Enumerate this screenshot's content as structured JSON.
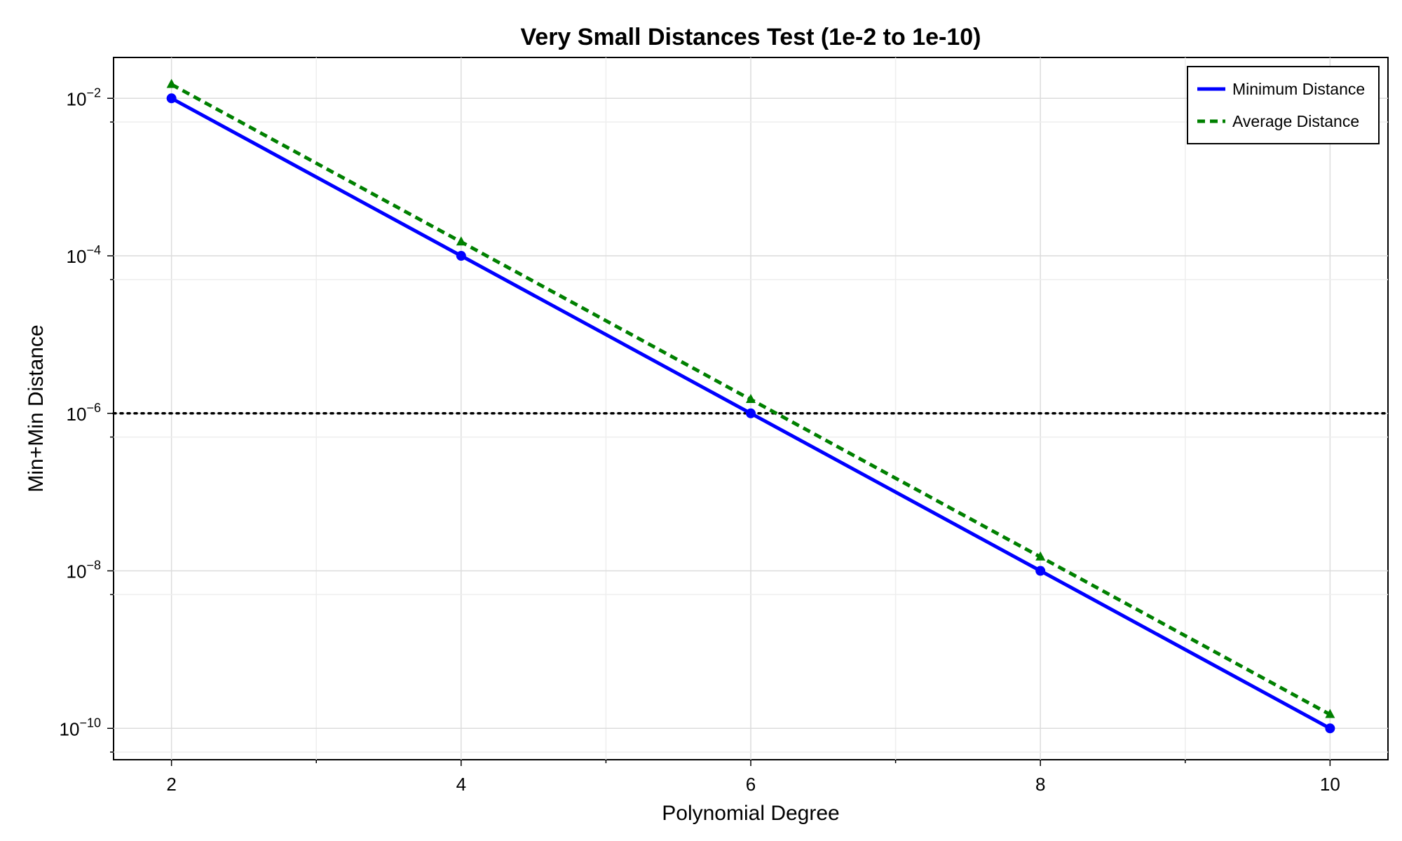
{
  "chart_data": {
    "type": "line",
    "title": "Very Small Distances Test (1e-2 to 1e-10)",
    "xlabel": "Polynomial Degree",
    "ylabel": "Min+Min Distance",
    "x": [
      2,
      4,
      6,
      8,
      10
    ],
    "xlim": [
      1.6,
      10.4
    ],
    "x_ticks": [
      2,
      4,
      6,
      8,
      10
    ],
    "y_scale": "log10",
    "ylim": [
      4e-11,
      0.033
    ],
    "y_ticks": [
      {
        "value": 0.01,
        "base": "10",
        "exp": "−2"
      },
      {
        "value": 0.0001,
        "base": "10",
        "exp": "−4"
      },
      {
        "value": 1e-06,
        "base": "10",
        "exp": "−6"
      },
      {
        "value": 1e-08,
        "base": "10",
        "exp": "−8"
      },
      {
        "value": 1e-10,
        "base": "10",
        "exp": "−10"
      }
    ],
    "grid": true,
    "legend_position": "top-right",
    "series": [
      {
        "name": "Minimum Distance",
        "values": [
          0.01,
          0.0001,
          1e-06,
          1e-08,
          1e-10
        ],
        "color": "#0000ff",
        "line_style": "solid",
        "marker": "circle"
      },
      {
        "name": "Average Distance",
        "values": [
          0.015,
          0.00015,
          1.5e-06,
          1.5e-08,
          1.5e-10
        ],
        "color": "#008000",
        "line_style": "dashed",
        "marker": "triangle"
      }
    ],
    "reference_line": {
      "y": 1e-06,
      "color": "#000000",
      "line_style": "dotted"
    }
  }
}
